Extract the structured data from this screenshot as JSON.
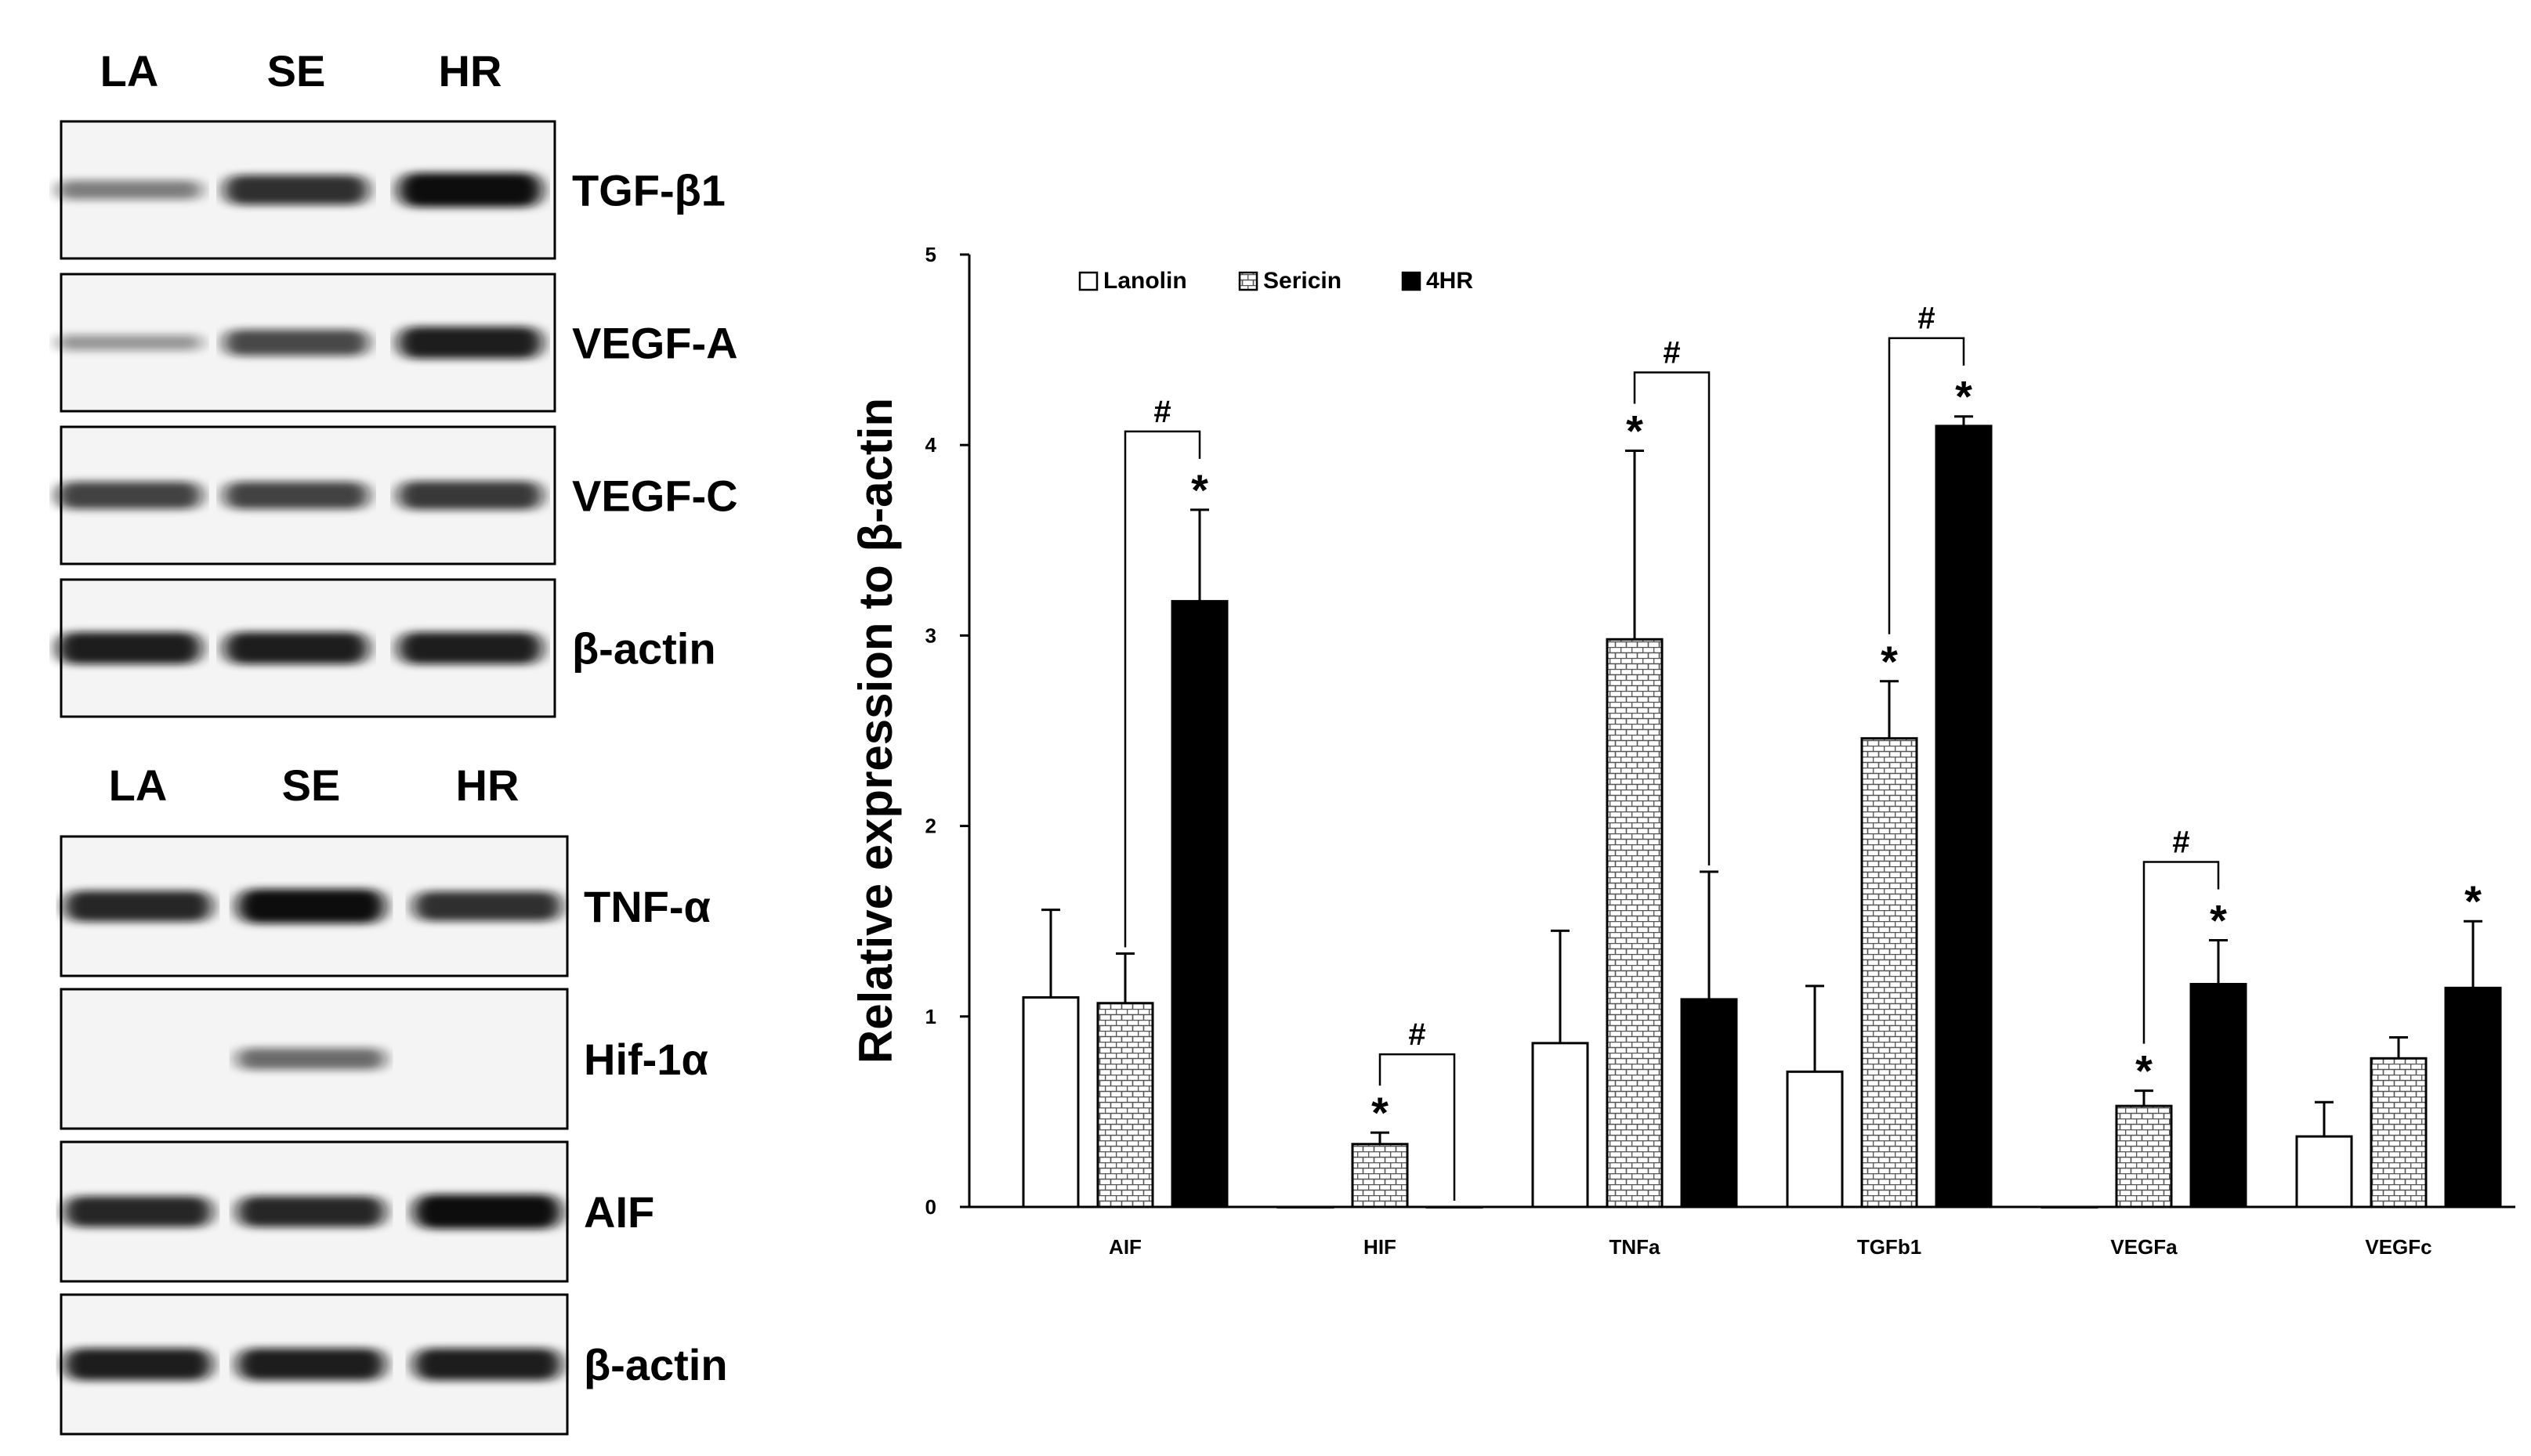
{
  "blot_panels": [
    {
      "lane_labels": [
        "LA",
        "SE",
        "HR"
      ],
      "rows": [
        {
          "protein": "TGF-β1",
          "intensity": [
            0.35,
            0.8,
            1.0
          ]
        },
        {
          "protein": "VEGF-A",
          "intensity": [
            0.2,
            0.65,
            0.9
          ]
        },
        {
          "protein": "VEGF-C",
          "intensity": [
            0.7,
            0.7,
            0.75
          ]
        },
        {
          "protein": "β-actin",
          "intensity": [
            0.9,
            0.9,
            0.9
          ]
        }
      ]
    },
    {
      "lane_labels": [
        "LA",
        "SE",
        "HR"
      ],
      "rows": [
        {
          "protein": "TNF-α",
          "intensity": [
            0.85,
            1.0,
            0.8
          ]
        },
        {
          "protein": "Hif-1α",
          "intensity": [
            0.0,
            0.45,
            0.0
          ]
        },
        {
          "protein": "AIF",
          "intensity": [
            0.85,
            0.85,
            1.0
          ]
        },
        {
          "protein": "β-actin",
          "intensity": [
            0.9,
            0.9,
            0.9
          ]
        }
      ]
    }
  ],
  "chart_data": {
    "type": "bar",
    "title": "",
    "xlabel": "",
    "ylabel": "Relative expression to β-actin",
    "ylim": [
      0,
      5
    ],
    "yticks": [
      0,
      1,
      2,
      3,
      4,
      5
    ],
    "categories": [
      "AIF",
      "HIF",
      "TNFa",
      "TGFb1",
      "VEGFa",
      "VEGFc"
    ],
    "series": [
      {
        "name": "Lanolin",
        "fill": "white",
        "values": [
          1.1,
          0.0,
          0.86,
          0.71,
          0.0,
          0.37
        ],
        "errors": [
          0.46,
          0.0,
          0.59,
          0.45,
          0.0,
          0.18
        ],
        "sig": [
          "",
          "",
          "",
          "",
          "",
          ""
        ]
      },
      {
        "name": "Sericin",
        "fill": "pattern",
        "values": [
          1.07,
          0.33,
          2.98,
          2.46,
          0.53,
          0.78
        ],
        "errors": [
          0.26,
          0.06,
          0.99,
          0.3,
          0.08,
          0.11
        ],
        "sig": [
          "",
          "*",
          "*",
          "*",
          "*",
          ""
        ]
      },
      {
        "name": "4HR",
        "fill": "black",
        "values": [
          3.18,
          0.0,
          1.09,
          4.1,
          1.17,
          1.15
        ],
        "errors": [
          0.48,
          0.0,
          0.67,
          0.05,
          0.23,
          0.35
        ],
        "sig": [
          "*",
          "",
          "",
          "*",
          "*",
          "*"
        ]
      }
    ],
    "brackets": [
      {
        "category": "AIF",
        "from_series": "Sericin",
        "to_series": "4HR",
        "label": "#"
      },
      {
        "category": "HIF",
        "from_series": "Sericin",
        "to_series": "4HR",
        "label": "#"
      },
      {
        "category": "TNFa",
        "from_series": "Sericin",
        "to_series": "4HR",
        "label": "#"
      },
      {
        "category": "TGFb1",
        "from_series": "Sericin",
        "to_series": "4HR",
        "label": "#"
      },
      {
        "category": "VEGFa",
        "from_series": "Sericin",
        "to_series": "4HR",
        "label": "#"
      }
    ],
    "legend_position": "top-left"
  },
  "colors": {
    "ink": "#000000",
    "paper": "#ffffff",
    "band": "#111111",
    "membrane": "#f4f4f4"
  }
}
